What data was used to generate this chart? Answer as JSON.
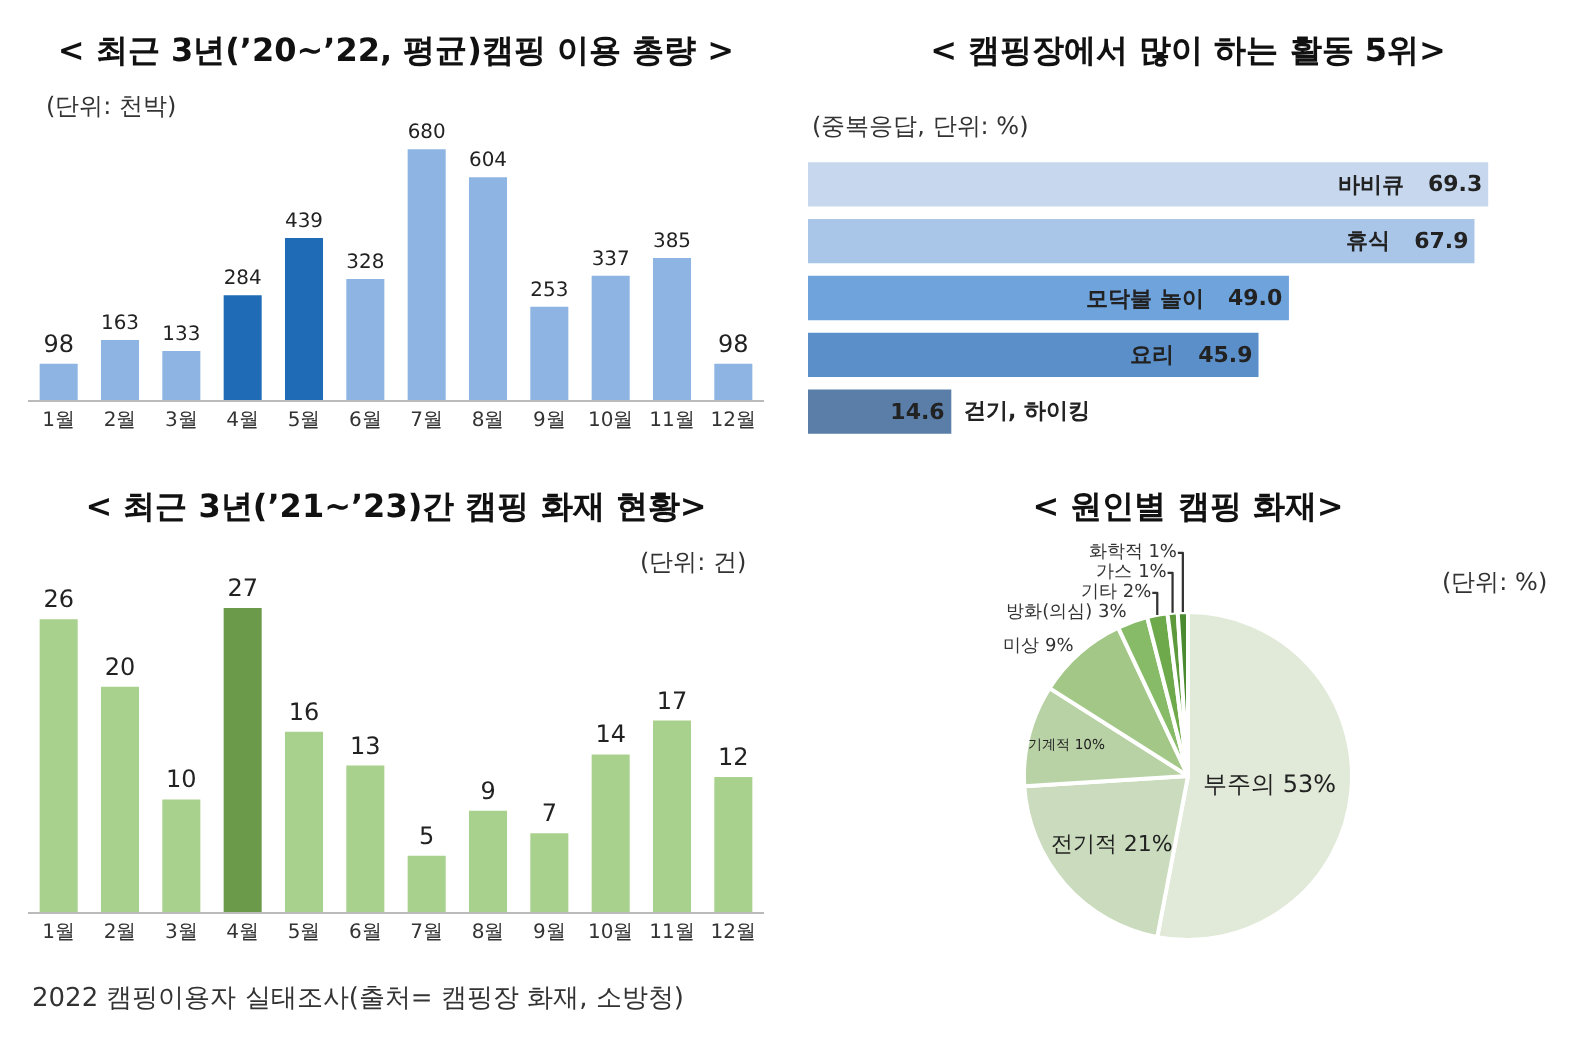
{
  "chart_data": [
    {
      "type": "bar",
      "title": "< 최근 3년(’20~’22, 평균)캠핑 이용 총량 >",
      "subtitle": "(단위: 천박)",
      "categories": [
        "1월",
        "2월",
        "3월",
        "4월",
        "5월",
        "6월",
        "7월",
        "8월",
        "9월",
        "10월",
        "11월",
        "12월"
      ],
      "values": [
        98,
        163,
        133,
        284,
        439,
        328,
        680,
        604,
        253,
        337,
        385,
        98
      ],
      "colors": [
        "#8db4e2",
        "#8db4e2",
        "#8db4e2",
        "#1f6bb5",
        "#1f6bb5",
        "#8db4e2",
        "#8db4e2",
        "#8db4e2",
        "#8db4e2",
        "#8db4e2",
        "#8db4e2",
        "#8db4e2"
      ],
      "data_labels": true,
      "tick_labels": "x"
    },
    {
      "type": "bar",
      "orientation": "horizontal",
      "title": "< 캠핑장에서 많이 하는 활동 5위>",
      "subtitle": "(중복응답, 단위: %)",
      "categories": [
        "바비큐",
        "휴식",
        "모닥불 놀이",
        "요리",
        "걷기, 하이킹"
      ],
      "values": [
        69.3,
        67.9,
        49.0,
        45.9,
        14.6
      ],
      "value_labels": [
        "69.3",
        "67.9",
        "49.0",
        "45.9",
        "14.6"
      ],
      "colors": [
        "#c6d7ee",
        "#a9c5e8",
        "#6fa3dc",
        "#5b8fca",
        "#5a7ea8"
      ],
      "tick_labels": false
    },
    {
      "type": "bar",
      "title": "< 최근 3년(’21~’23)간 캠핑 화재 현황>",
      "subtitle": "(단위: 건)",
      "categories": [
        "1월",
        "2월",
        "3월",
        "4월",
        "5월",
        "6월",
        "7월",
        "8월",
        "9월",
        "10월",
        "11월",
        "12월"
      ],
      "values": [
        26,
        20,
        10,
        27,
        16,
        13,
        5,
        9,
        7,
        14,
        17,
        12
      ],
      "colors": [
        "#a9d18e",
        "#a9d18e",
        "#a9d18e",
        "#6a9a4a",
        "#a9d18e",
        "#a9d18e",
        "#a9d18e",
        "#a9d18e",
        "#a9d18e",
        "#a9d18e",
        "#a9d18e",
        "#a9d18e"
      ],
      "data_labels": true,
      "tick_labels": "x",
      "annotations": [
        "2022 캠핑이용자 실태조사(출처= 캠핑장 화재, 소방청)"
      ]
    },
    {
      "type": "pie",
      "title": "< 원인별 캠핑 화재>",
      "subtitle": "(단위: %)",
      "categories": [
        "부주의",
        "전기적",
        "기계적",
        "미상",
        "방화(의심)",
        "기타",
        "가스",
        "화학적"
      ],
      "values": [
        53,
        21,
        10,
        9,
        3,
        2,
        1,
        1
      ],
      "value_labels": [
        "53%",
        "21%",
        "10%",
        "9%",
        "3%",
        "2%",
        "1%",
        "1%"
      ],
      "colors": [
        "#e1ead8",
        "#cadcbd",
        "#b8d2a5",
        "#a2c787",
        "#87bb67",
        "#6ea94c",
        "#5e9a3d",
        "#4c8a2f"
      ]
    }
  ]
}
